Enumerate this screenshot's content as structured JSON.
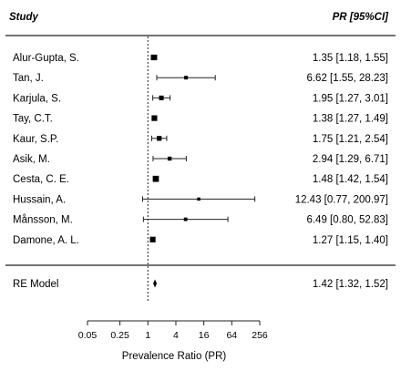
{
  "chart_data": {
    "type": "forest",
    "header": {
      "left": "Study",
      "right": "PR [95%CI]"
    },
    "xlabel": "Prevalence Ratio (PR)",
    "x_scale": "log2",
    "xlim": [
      0.05,
      256
    ],
    "xticks": [
      "0.05",
      "0.25",
      "1",
      "4",
      "16",
      "64",
      "256"
    ],
    "xtick_values": [
      0.05,
      0.25,
      1,
      4,
      16,
      64,
      256
    ],
    "reference_line": 1,
    "studies": [
      {
        "label": "Alur-Gupta, S.",
        "pr": 1.35,
        "lo": 1.18,
        "hi": 1.55,
        "ci_text": "1.35 [1.18,  1.55]",
        "weight": 1.1
      },
      {
        "label": "Tan, J.",
        "pr": 6.62,
        "lo": 1.55,
        "hi": 28.23,
        "ci_text": "6.62 [1.55, 28.23]",
        "weight": 0.5
      },
      {
        "label": "Karjula, S.",
        "pr": 1.95,
        "lo": 1.27,
        "hi": 3.01,
        "ci_text": "1.95 [1.27,  3.01]",
        "weight": 0.8
      },
      {
        "label": "Tay, C.T.",
        "pr": 1.38,
        "lo": 1.27,
        "hi": 1.49,
        "ci_text": "1.38 [1.27,  1.49]",
        "weight": 1.1
      },
      {
        "label": "Kaur, S.P.",
        "pr": 1.75,
        "lo": 1.21,
        "hi": 2.54,
        "ci_text": "1.75 [1.21,  2.54]",
        "weight": 0.85
      },
      {
        "label": "Asik, M.",
        "pr": 2.94,
        "lo": 1.29,
        "hi": 6.71,
        "ci_text": "2.94 [1.29,  6.71]",
        "weight": 0.6
      },
      {
        "label": "Cesta, C. E.",
        "pr": 1.48,
        "lo": 1.42,
        "hi": 1.54,
        "ci_text": "1.48 [1.42,  1.54]",
        "weight": 1.25
      },
      {
        "label": "Hussain, A.",
        "pr": 12.43,
        "lo": 0.77,
        "hi": 200.97,
        "ci_text": "12.43 [0.77, 200.97]",
        "weight": 0.35
      },
      {
        "label": "Månsson, M.",
        "pr": 6.49,
        "lo": 0.8,
        "hi": 52.83,
        "ci_text": "6.49 [0.80, 52.83]",
        "weight": 0.45
      },
      {
        "label": "Damone, A. L.",
        "pr": 1.27,
        "lo": 1.15,
        "hi": 1.4,
        "ci_text": "1.27 [1.15,  1.40]",
        "weight": 1.1
      }
    ],
    "summary": {
      "label": "RE Model",
      "pr": 1.42,
      "lo": 1.32,
      "hi": 1.52,
      "ci_text": "1.42 [1.32,  1.52]"
    }
  }
}
